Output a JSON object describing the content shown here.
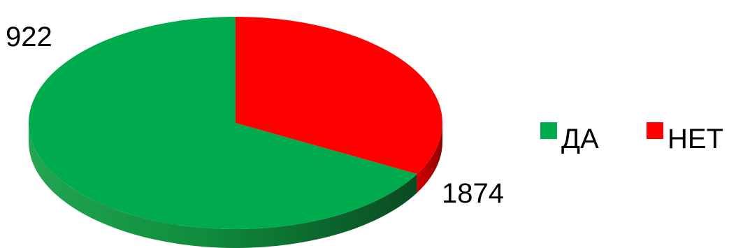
{
  "chart_data": {
    "type": "pie",
    "style": "3d",
    "title": "",
    "categories": [
      "ДА",
      "НЕТ"
    ],
    "values": [
      1874,
      922
    ],
    "colors": [
      "#00ab4e",
      "#ff0000"
    ],
    "legend": {
      "position": "right",
      "entries": [
        "ДА",
        "НЕТ"
      ]
    },
    "data_labels": [
      "1874",
      "922"
    ]
  }
}
